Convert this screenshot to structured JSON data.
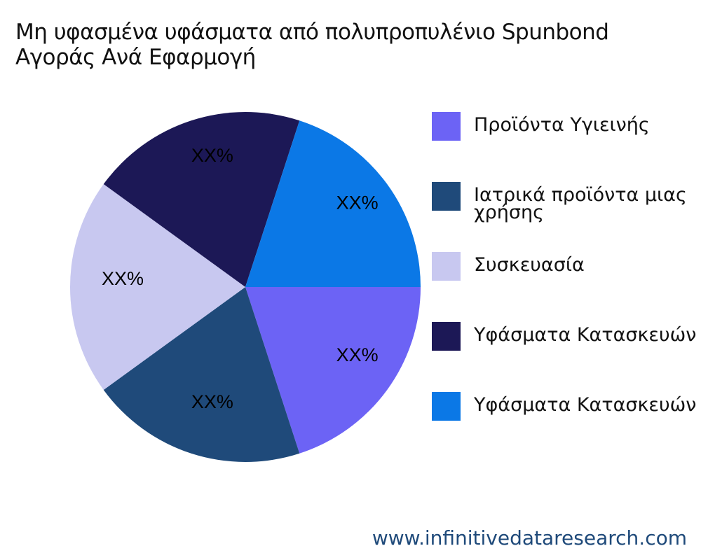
{
  "chart_data": {
    "type": "pie",
    "title": "Μη υφασμένα υφάσματα από πολυπροπυλένιο Spunbond\nΑγοράς Ανά Εφαρμογή",
    "slices": [
      {
        "name": "Προϊόντα Υγιεινής",
        "value": 20,
        "label": "XX%",
        "color": "#6C63F5"
      },
      {
        "name": "Ιατρικά προϊόντα μιας\nχρήσης",
        "value": 20,
        "label": "XX%",
        "color": "#1F4A7A"
      },
      {
        "name": "Συσκευασία",
        "value": 20,
        "label": "XX%",
        "color": "#C8C8F0"
      },
      {
        "name": "Υφάσματα Κατασκευών",
        "value": 20,
        "label": "XX%",
        "color": "#1C1856"
      },
      {
        "name": "Υφάσματα Κατασκευών",
        "value": 20,
        "label": "XX%",
        "color": "#0B78E6"
      }
    ],
    "legend_position": "right"
  },
  "watermark": "www.infinitivedataresearch.com"
}
